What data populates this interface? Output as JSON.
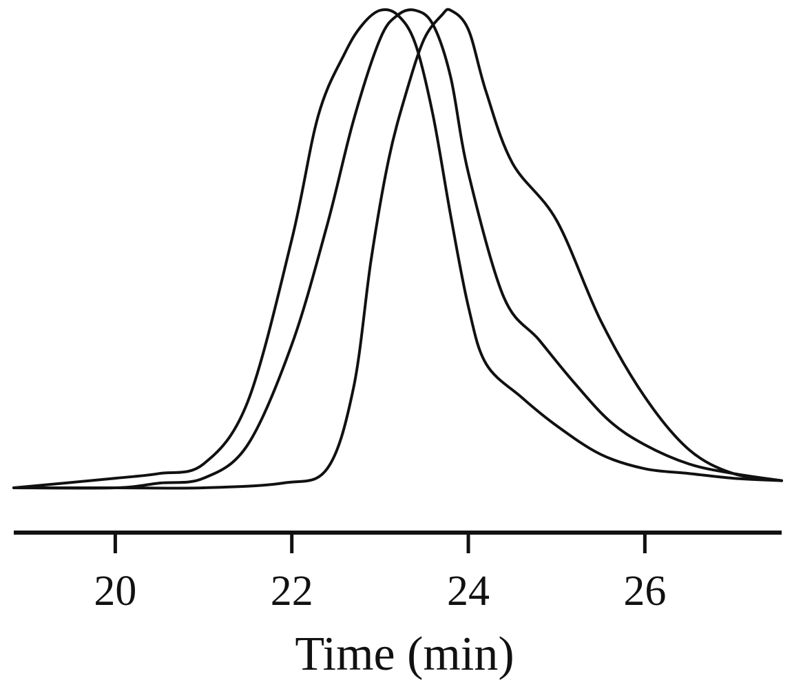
{
  "chart_data": {
    "type": "line",
    "xlabel": "Time (min)",
    "ylabel": "",
    "xlim": [
      18.85,
      27.55
    ],
    "ylim": [
      0,
      1
    ],
    "x_ticks": [
      20,
      22,
      24,
      26
    ],
    "x_tick_labels": [
      "20",
      "22",
      "24",
      "26"
    ],
    "grid": false,
    "line_color": "#111111",
    "series": [
      {
        "x": [
          18.85,
          20.0,
          20.5,
          21.0,
          21.5,
          22.0,
          22.3,
          22.6,
          22.8,
          23.0,
          23.2,
          23.4,
          23.6,
          23.8,
          24.0,
          24.2,
          24.6,
          25.0,
          25.5,
          26.0,
          26.5,
          27.0,
          27.55
        ],
        "y": [
          0.0,
          0.02,
          0.03,
          0.05,
          0.18,
          0.52,
          0.78,
          0.91,
          0.97,
          1.0,
          0.99,
          0.93,
          0.78,
          0.57,
          0.38,
          0.26,
          0.19,
          0.13,
          0.07,
          0.04,
          0.03,
          0.02,
          0.015
        ]
      },
      {
        "x": [
          18.85,
          20.0,
          20.5,
          21.0,
          21.5,
          22.0,
          22.4,
          22.7,
          23.0,
          23.2,
          23.4,
          23.6,
          23.8,
          24.0,
          24.4,
          24.8,
          25.2,
          25.6,
          26.0,
          26.5,
          27.0,
          27.55
        ],
        "y": [
          0.0,
          0.0,
          0.01,
          0.02,
          0.09,
          0.3,
          0.55,
          0.77,
          0.94,
          0.99,
          1.0,
          0.97,
          0.86,
          0.66,
          0.4,
          0.31,
          0.22,
          0.14,
          0.09,
          0.05,
          0.03,
          0.015
        ]
      },
      {
        "x": [
          18.85,
          20.0,
          21.0,
          21.9,
          22.4,
          22.7,
          22.9,
          23.1,
          23.3,
          23.5,
          23.7,
          23.8,
          24.0,
          24.2,
          24.5,
          25.0,
          25.5,
          26.0,
          26.5,
          27.0,
          27.55
        ],
        "y": [
          0.0,
          0.0,
          0.0,
          0.01,
          0.04,
          0.21,
          0.48,
          0.69,
          0.83,
          0.94,
          0.99,
          1.0,
          0.96,
          0.83,
          0.68,
          0.56,
          0.35,
          0.19,
          0.08,
          0.03,
          0.015
        ]
      }
    ]
  }
}
